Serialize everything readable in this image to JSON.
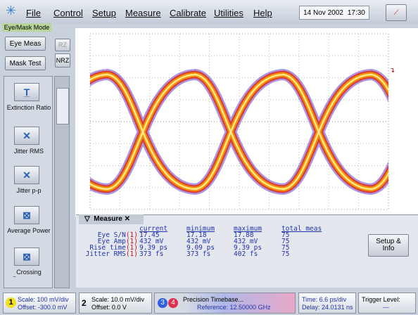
{
  "menu": [
    "File",
    "Control",
    "Setup",
    "Measure",
    "Calibrate",
    "Utilities",
    "Help"
  ],
  "date": "14 Nov 2002",
  "time": "17:30",
  "mode": "Eye/Mask Mode",
  "buttons": {
    "eye_meas": "Eye Meas",
    "mask_test": "Mask Test",
    "rz": "RZ",
    "nrz": "NRZ"
  },
  "tools": [
    "Extinction Ratio",
    "Jitter RMS",
    "Jitter p-p",
    "Average Power",
    "Crossing Percentage"
  ],
  "measure": {
    "title": "Measure",
    "headers": [
      "current",
      "minimum",
      "maximum",
      "total meas"
    ],
    "rows": [
      {
        "name": "Eye S/N",
        "channel": "(1)",
        "values": [
          "17.45",
          "17.18",
          "17.88",
          "75"
        ]
      },
      {
        "name": "Eye Amp",
        "channel": "(1)",
        "values": [
          "432 mV",
          "432 mV",
          "432 mV",
          "75"
        ]
      },
      {
        "name": "Rise time",
        "channel": "(1)",
        "values": [
          "9.39 ps",
          "9.09 ps",
          "9.39 ps",
          "75"
        ]
      },
      {
        "name": "Jitter RMS",
        "channel": "(1)",
        "values": [
          "373 fs",
          "373 fs",
          "402 fs",
          "75"
        ]
      }
    ],
    "setup_info": "Setup & Info"
  },
  "status": {
    "ch1": {
      "number": "1",
      "scale": "Scale: 100 mV/div",
      "offset": "Offset: -300.0 mV"
    },
    "ch2": {
      "number": "2",
      "scale": "Scale: 10.0 mV/div",
      "offset": "Offset: 0.0 V"
    },
    "ch3": "3",
    "ch4": "4",
    "timebase": {
      "title": "Precision Timebase...",
      "reference": "Reference: 12.50000 GHz"
    },
    "time": {
      "scale": "Time: 6.6 ps/div",
      "delay": "Delay: 24.0131 ns"
    },
    "trigger": {
      "label": "Trigger Level:",
      "value": "---"
    }
  }
}
